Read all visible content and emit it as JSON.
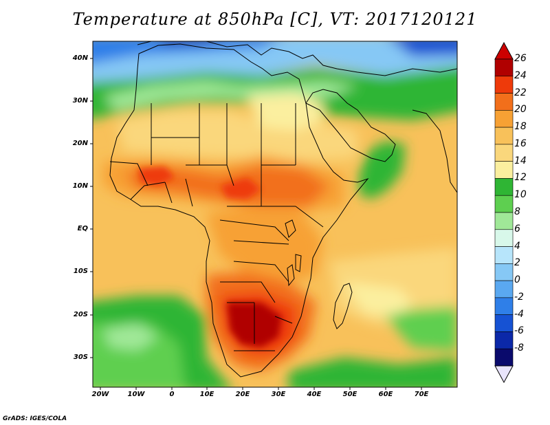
{
  "title": "Temperature at 850hPa [C], VT: 2017120121",
  "credit": "GrADS: IGES/COLA",
  "lat_labels": [
    "40N",
    "30N",
    "20N",
    "10N",
    "EQ",
    "10S",
    "20S",
    "30S"
  ],
  "lon_labels": [
    "20W",
    "10W",
    "0",
    "10E",
    "20E",
    "30E",
    "40E",
    "50E",
    "60E",
    "70E"
  ],
  "colorbar": {
    "labels": [
      "26",
      "24",
      "22",
      "20",
      "18",
      "16",
      "14",
      "12",
      "10",
      "8",
      "6",
      "4",
      "2",
      "0",
      "-2",
      "-4",
      "-6",
      "-8"
    ],
    "colors": [
      "#b00000",
      "#ee3a0a",
      "#f26f1b",
      "#f7a134",
      "#f8c15a",
      "#fad77c",
      "#fbef9f",
      "#2fb534",
      "#5ecf50",
      "#a0e898",
      "#d8f8ea",
      "#b7e5fb",
      "#86c8f5",
      "#5aa8f0",
      "#2f7fe8",
      "#1652d3",
      "#0b28a8",
      "#0a0a6c"
    ],
    "over_color": "#cc0000",
    "under_color": "#e9e4fb"
  },
  "map": {
    "extent": {
      "lon_min": -22,
      "lon_max": 80,
      "lat_min": -37,
      "lat_max": 45
    },
    "features": [
      {
        "name": "north-africa-warm",
        "color": "#fad77c"
      },
      {
        "name": "sahel-hot",
        "color": "#f26f1b"
      },
      {
        "name": "southern-africa-hot",
        "color": "#b00000"
      },
      {
        "name": "ethiopian-highlands-cool",
        "color": "#5ecf50"
      },
      {
        "name": "mediterranean-cold",
        "color": "#86c8f5"
      },
      {
        "name": "southern-ocean-cool",
        "color": "#2fb534"
      }
    ]
  }
}
